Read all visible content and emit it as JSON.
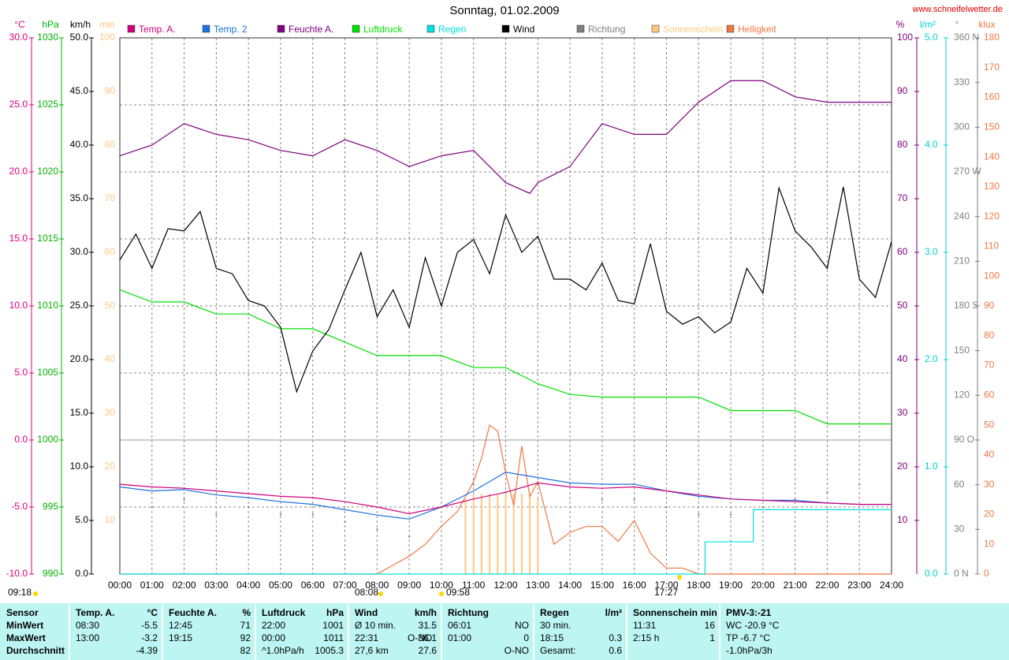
{
  "chart_data": {
    "type": "line",
    "title": "Sonntag, 01.02.2009",
    "source": "www.schneifelwetter.de",
    "xlim": [
      0,
      24
    ],
    "xticks": [
      {
        "value": 0,
        "label": "00:00"
      },
      {
        "value": 1,
        "label": "01:00"
      },
      {
        "value": 2,
        "label": "02:00"
      },
      {
        "value": 3,
        "label": "03:00"
      },
      {
        "value": 4,
        "label": "04:00"
      },
      {
        "value": 5,
        "label": "05:00"
      },
      {
        "value": 6,
        "label": "06:00"
      },
      {
        "value": 7,
        "label": "07:00"
      },
      {
        "value": 8,
        "label": "08:00"
      },
      {
        "value": 9,
        "label": "09:00"
      },
      {
        "value": 10,
        "label": "10:00"
      },
      {
        "value": 11,
        "label": "11:00"
      },
      {
        "value": 12,
        "label": "12:00"
      },
      {
        "value": 13,
        "label": "13:00"
      },
      {
        "value": 14,
        "label": "14:00"
      },
      {
        "value": 15,
        "label": "15:00"
      },
      {
        "value": 16,
        "label": "16:00"
      },
      {
        "value": 17,
        "label": "17:00"
      },
      {
        "value": 18,
        "label": "18:00"
      },
      {
        "value": 19,
        "label": "19:00"
      },
      {
        "value": 20,
        "label": "20:00"
      },
      {
        "value": 21,
        "label": "21:00"
      },
      {
        "value": 22,
        "label": "22:00"
      },
      {
        "value": 23,
        "label": "23:00"
      },
      {
        "value": 24,
        "label": "24:00"
      }
    ],
    "grid": true,
    "axes": [
      {
        "label": "°C",
        "color": "#e0007a",
        "lim": [
          -10,
          30
        ],
        "grid": true,
        "ticks": [
          {
            "value": -10,
            "label": "-10.0"
          },
          {
            "value": -5,
            "label": "-5.0"
          },
          {
            "value": 0,
            "label": "0.0"
          },
          {
            "value": 5,
            "label": "5.0"
          },
          {
            "value": 10,
            "label": "10.0"
          },
          {
            "value": 15,
            "label": "15.0"
          },
          {
            "value": 20,
            "label": "20.0"
          },
          {
            "value": 25,
            "label": "25.0"
          },
          {
            "value": 30,
            "label": "30.0"
          }
        ]
      },
      {
        "label": "hPa",
        "color": "#00b000",
        "lim": [
          990,
          1030
        ],
        "ticks": [
          990,
          995,
          1000,
          1005,
          1010,
          1015,
          1020,
          1025,
          1030
        ]
      },
      {
        "label": "km/h",
        "color": "#000000",
        "lim": [
          0,
          50
        ],
        "ticks": [
          {
            "value": 0,
            "label": "0.0"
          },
          {
            "value": 5,
            "label": "5.0"
          },
          {
            "value": 10,
            "label": "10.0"
          },
          {
            "value": 15,
            "label": "15.0"
          },
          {
            "value": 20,
            "label": "20.0"
          },
          {
            "value": 25,
            "label": "25.0"
          },
          {
            "value": 30,
            "label": "30.0"
          },
          {
            "value": 35,
            "label": "35.0"
          },
          {
            "value": 40,
            "label": "40.0"
          },
          {
            "value": 45,
            "label": "45.0"
          },
          {
            "value": 50,
            "label": "50.0"
          }
        ]
      },
      {
        "label": "min",
        "color": "#ffc880",
        "lim": [
          0,
          100
        ],
        "ticks": [
          10,
          20,
          30,
          40,
          50,
          60,
          70,
          80,
          90,
          100
        ]
      },
      {
        "label": "%",
        "color": "#800080",
        "lim": [
          0,
          100
        ],
        "ticks": [
          10,
          20,
          30,
          40,
          50,
          60,
          70,
          80,
          90,
          100
        ]
      },
      {
        "label": "l/m²",
        "color": "#00d0d0",
        "lim": [
          0,
          5
        ],
        "ticks": [
          {
            "value": 0,
            "label": "0.0"
          },
          {
            "value": 1,
            "label": "1.0"
          },
          {
            "value": 2,
            "label": "2.0"
          },
          {
            "value": 3,
            "label": "3.0"
          },
          {
            "value": 4,
            "label": "4.0"
          },
          {
            "value": 5,
            "label": "5.0"
          }
        ]
      },
      {
        "label": "°",
        "color": "#808080",
        "lim": [
          0,
          360
        ],
        "ticks": [
          {
            "value": 0,
            "label": "0 N"
          },
          30,
          60,
          {
            "value": 90,
            "label": "90 O"
          },
          120,
          150,
          {
            "value": 180,
            "label": "180 S"
          },
          210,
          240,
          {
            "value": 270,
            "label": "270 W"
          },
          300,
          330,
          {
            "value": 360,
            "label": "360 N"
          }
        ]
      },
      {
        "label": "klux",
        "color": "#f07840",
        "lim": [
          0,
          180
        ],
        "ticks": [
          0,
          10,
          20,
          30,
          40,
          50,
          60,
          70,
          80,
          90,
          100,
          110,
          120,
          130,
          140,
          150,
          160,
          170,
          180
        ]
      }
    ],
    "series": [
      {
        "name": "Temp. A.",
        "color": "#d0007a",
        "axis": 0,
        "style": "line",
        "x": [
          0,
          1,
          2,
          3,
          4,
          5,
          6,
          7,
          8,
          9,
          10,
          11,
          12,
          13,
          14,
          15,
          16,
          17,
          18,
          19,
          20,
          21,
          22,
          23,
          24
        ],
        "values": [
          -3.3,
          -3.5,
          -3.6,
          -3.8,
          -4.0,
          -4.2,
          -4.3,
          -4.6,
          -5.0,
          -5.5,
          -5.0,
          -4.4,
          -3.9,
          -3.2,
          -3.5,
          -3.6,
          -3.5,
          -3.8,
          -4.1,
          -4.4,
          -4.5,
          -4.6,
          -4.7,
          -4.8,
          -4.8
        ]
      },
      {
        "name": "Temp. 2",
        "color": "#1e6fe0",
        "axis": 0,
        "style": "line",
        "x": [
          0,
          1,
          2,
          3,
          4,
          5,
          6,
          7,
          8,
          9,
          10,
          11,
          12,
          13,
          14,
          15,
          16,
          17,
          18,
          19,
          20,
          21,
          22,
          23,
          24
        ],
        "values": [
          -3.5,
          -3.8,
          -3.7,
          -4.1,
          -4.3,
          -4.6,
          -4.8,
          -5.2,
          -5.6,
          -5.9,
          -5.0,
          -3.8,
          -2.4,
          -2.8,
          -3.2,
          -3.3,
          -3.3,
          -3.8,
          -4.2,
          -4.4,
          -4.5,
          -4.5,
          -4.7,
          -4.8,
          -4.8
        ]
      },
      {
        "name": "Feuchte A.",
        "color": "#800080",
        "axis": 4,
        "style": "line",
        "x": [
          0,
          1,
          2,
          3,
          4,
          5,
          6,
          7,
          8,
          9,
          10,
          11,
          12,
          12.75,
          13,
          14,
          15,
          16,
          17,
          18,
          19,
          20,
          21,
          22,
          23,
          24
        ],
        "values": [
          78,
          80,
          84,
          82,
          81,
          79,
          78,
          81,
          79,
          76,
          78,
          79,
          73,
          71,
          73,
          76,
          84,
          82,
          82,
          88,
          92,
          92,
          89,
          88,
          88,
          88
        ]
      },
      {
        "name": "Luftdruck",
        "color": "#00e000",
        "axis": 1,
        "style": "line",
        "x": [
          0,
          1,
          2,
          3,
          4,
          5,
          6,
          7,
          8,
          9,
          10,
          11,
          12,
          13,
          14,
          15,
          16,
          17,
          18,
          19,
          20,
          21,
          22,
          23,
          24
        ],
        "values": [
          1011.2,
          1010.3,
          1010.3,
          1009.4,
          1009.4,
          1008.3,
          1008.3,
          1007.3,
          1006.3,
          1006.3,
          1006.3,
          1005.4,
          1005.4,
          1004.2,
          1003.4,
          1003.2,
          1003.2,
          1003.2,
          1003.2,
          1002.2,
          1002.2,
          1002.2,
          1001.2,
          1001.2,
          1001.2
        ]
      },
      {
        "name": "Regen",
        "color": "#00e0e0",
        "axis": 5,
        "style": "line",
        "x": [
          0,
          18.2,
          18.2,
          19.7,
          19.7,
          24
        ],
        "values": [
          0,
          0,
          0.3,
          0.3,
          0.6,
          0.6
        ]
      },
      {
        "name": "Wind",
        "color": "#000000",
        "axis": 2,
        "style": "line",
        "x": [
          0,
          0.5,
          1,
          1.5,
          2,
          2.5,
          3,
          3.5,
          4,
          4.5,
          5,
          5.5,
          6,
          6.5,
          7,
          7.5,
          8,
          8.5,
          9,
          9.5,
          10,
          10.5,
          11,
          11.5,
          12,
          12.5,
          13,
          13.5,
          14,
          14.5,
          15,
          15.5,
          16,
          16.5,
          17,
          17.5,
          18,
          18.5,
          19,
          19.5,
          20,
          20.5,
          21,
          21.5,
          22,
          22.5,
          23,
          23.5,
          24
        ],
        "values": [
          29.3,
          31.7,
          28.5,
          32.2,
          32.0,
          33.8,
          28.5,
          28.0,
          25.5,
          25.0,
          23.0,
          17.0,
          20.8,
          22.8,
          26.5,
          30.0,
          24.0,
          26.5,
          23.0,
          29.5,
          25.0,
          30.0,
          31.2,
          28.0,
          33.5,
          30.0,
          31.5,
          27.5,
          27.5,
          26.5,
          29.0,
          25.5,
          25.2,
          30.8,
          24.5,
          23.3,
          24.0,
          22.5,
          23.5,
          28.5,
          26.2,
          36.0,
          32.0,
          30.5,
          28.5,
          36.1,
          27.5,
          25.8,
          31.0
        ]
      },
      {
        "name": "Richtung",
        "color": "#808080",
        "axis": 6,
        "style": "dots",
        "x": [
          0,
          1,
          2,
          3,
          4,
          5,
          6,
          7,
          8,
          9,
          10,
          11,
          12,
          13,
          14,
          15,
          16,
          17,
          18,
          19,
          20,
          21,
          22,
          23,
          24
        ],
        "values": [
          60,
          45,
          50,
          40,
          45,
          40,
          40,
          35,
          30,
          25,
          45,
          60,
          55,
          60,
          60,
          50,
          50,
          45,
          40,
          40,
          45,
          50,
          55,
          60,
          65
        ]
      },
      {
        "name": "Sonnenschein",
        "color": "#ffc880",
        "axis": 3,
        "style": "bars",
        "x": [
          10.75,
          11,
          11.25,
          11.5,
          11.75,
          12,
          12.25,
          12.5,
          12.75,
          13
        ],
        "values": [
          14,
          15,
          15,
          15,
          15,
          15,
          15,
          15,
          15,
          14
        ]
      },
      {
        "name": "Helligkeit",
        "color": "#f07840",
        "axis": 7,
        "style": "line",
        "x": [
          0,
          8,
          9,
          9.5,
          10,
          10.5,
          11,
          11.25,
          11.5,
          11.75,
          12,
          12.25,
          12.5,
          12.75,
          13,
          13.5,
          14,
          14.5,
          15,
          15.5,
          16,
          16.5,
          17,
          17.5,
          18,
          24
        ],
        "values": [
          0,
          0,
          6,
          10,
          16,
          21,
          31,
          39,
          50,
          48,
          34,
          23,
          43,
          26,
          31,
          10,
          14,
          16,
          16,
          11,
          18,
          7,
          2,
          2,
          0,
          0
        ]
      }
    ],
    "annotations": [
      "09:18",
      "08:08",
      "09:58",
      "17:27"
    ]
  },
  "table": {
    "header": [
      {
        "left": "Sensor"
      },
      {
        "left": "Temp. A.",
        "right": "°C"
      },
      {
        "left": "Feuchte A.",
        "right": "%"
      },
      {
        "left": "Luftdruck",
        "right": "hPa"
      },
      {
        "left": "Wind",
        "right": "km/h"
      },
      {
        "left": "Richtung"
      },
      {
        "left": "Regen",
        "right": "l/m²"
      },
      {
        "left": "Sonnenschein min"
      },
      {
        "left": "PMV-3:-21"
      }
    ],
    "rows": [
      [
        {
          "left": "MinWert"
        },
        {
          "left": "08:30",
          "right": "-5.5"
        },
        {
          "left": "12:45",
          "right": "71"
        },
        {
          "left": "22:00",
          "right": "1001"
        },
        {
          "left": "Ø 10 min.",
          "right": "31.5"
        },
        {
          "left": "06:01",
          "right": "NO"
        },
        {
          "left": "30 min."
        },
        {
          "left": "11:31",
          "right": "16"
        },
        {
          "left": "WC -20.9 °C"
        }
      ],
      [
        {
          "left": "MaxWert"
        },
        {
          "left": "13:00",
          "right": "-3.2"
        },
        {
          "left": "19:15",
          "right": "92"
        },
        {
          "left": "00:00",
          "right": "1011"
        },
        {
          "left": "22:31",
          "mid": "O-NO",
          "right": "36.1"
        },
        {
          "left": "01:00",
          "right": "0"
        },
        {
          "left": "18:15",
          "right": "0.3"
        },
        {
          "left": "2:15 h",
          "right": "1"
        },
        {
          "left": "TP -6.7 °C"
        }
      ],
      [
        {
          "left": "Durchschnitt"
        },
        {
          "right": "-4.39"
        },
        {
          "right": "82"
        },
        {
          "left": "^1.0hPa/h",
          "right": "1005.3"
        },
        {
          "left": "27,6 km",
          "right": "27.6"
        },
        {
          "right": "O-NO"
        },
        {
          "left": "Gesamt:",
          "right": "0.6"
        },
        {},
        {
          "left": "-1.0hPa/3h"
        }
      ]
    ]
  }
}
